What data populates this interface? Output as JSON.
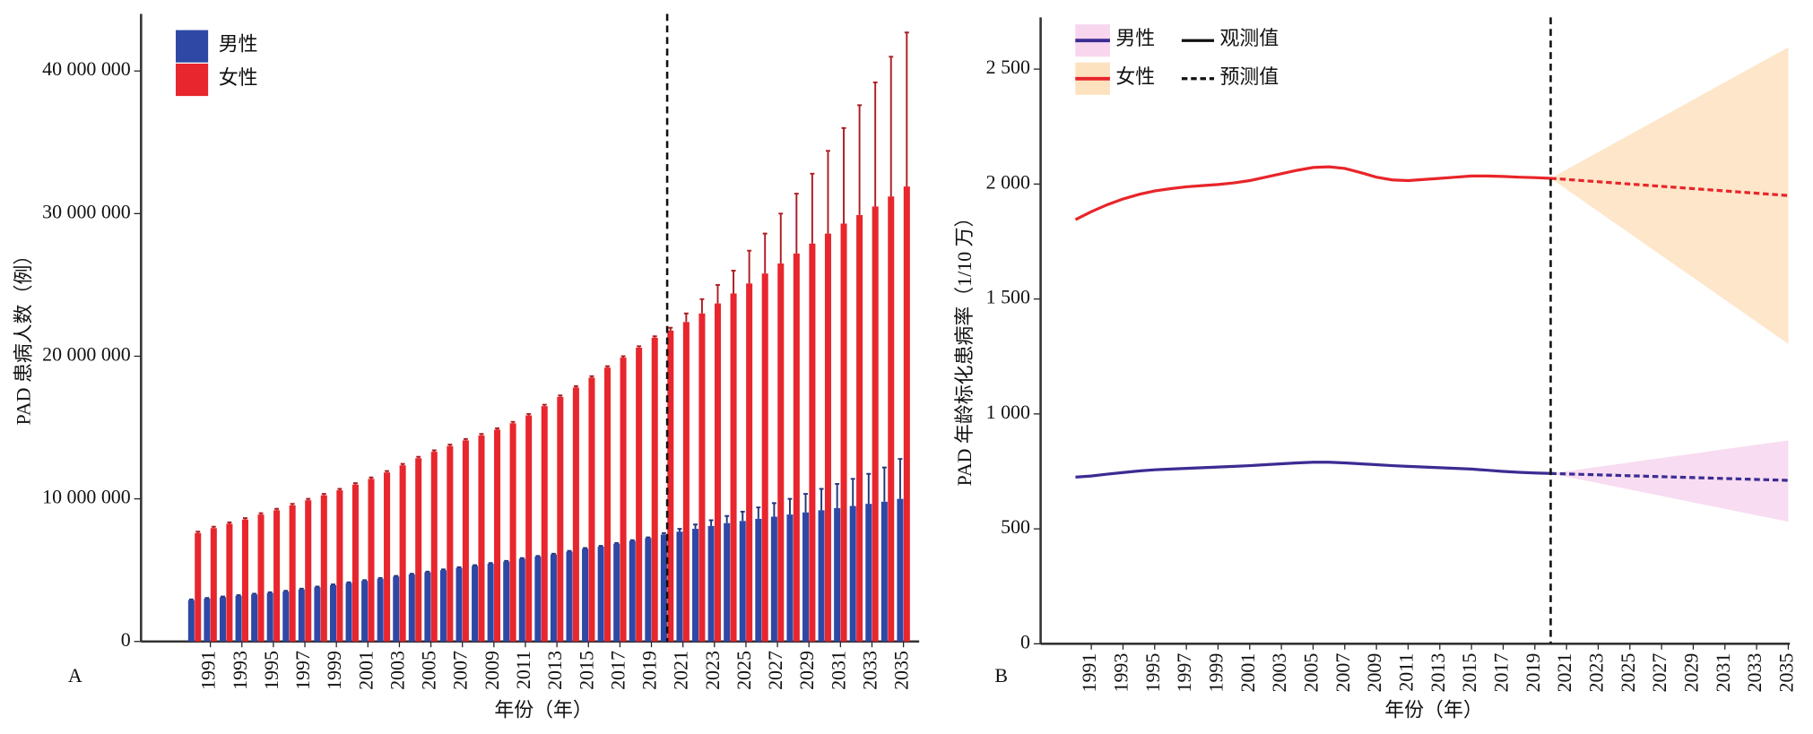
{
  "chart_data": [
    {
      "type": "bar",
      "panel": "A",
      "xlabel": "年份（年）",
      "ylabel": "PAD 患病人数（例）",
      "x": [
        1990,
        1991,
        1992,
        1993,
        1994,
        1995,
        1996,
        1997,
        1998,
        1999,
        2000,
        2001,
        2002,
        2003,
        2004,
        2005,
        2006,
        2007,
        2008,
        2009,
        2010,
        2011,
        2012,
        2013,
        2014,
        2015,
        2016,
        2017,
        2018,
        2019,
        2020,
        2021,
        2022,
        2023,
        2024,
        2025,
        2026,
        2027,
        2028,
        2029,
        2030,
        2031,
        2032,
        2033,
        2034,
        2035
      ],
      "xlim": [
        1986.6,
        2036
      ],
      "xticks": [
        1991,
        1993,
        1995,
        1997,
        1999,
        2001,
        2003,
        2005,
        2007,
        2009,
        2011,
        2013,
        2015,
        2017,
        2019,
        2021,
        2023,
        2025,
        2027,
        2029,
        2031,
        2033,
        2035
      ],
      "ylim": [
        0,
        44000000
      ],
      "yticks": [
        0,
        {
          "value": 10000000,
          "label": "10 000 000"
        },
        {
          "value": 20000000,
          "label": "20 000 000"
        },
        {
          "value": 30000000,
          "label": "30 000 000"
        },
        {
          "value": 40000000,
          "label": "40 000 000"
        }
      ],
      "vline": 2020,
      "legend": "upper-left",
      "series": [
        {
          "name": "男性",
          "color": "#2f48a6",
          "values": [
            2900000,
            3000000,
            3100000,
            3200000,
            3300000,
            3400000,
            3500000,
            3650000,
            3800000,
            3950000,
            4100000,
            4250000,
            4400000,
            4550000,
            4700000,
            4850000,
            5000000,
            5150000,
            5300000,
            5450000,
            5600000,
            5800000,
            5950000,
            6100000,
            6300000,
            6500000,
            6650000,
            6850000,
            7050000,
            7250000,
            7500000,
            7700000,
            7900000,
            8100000,
            8300000,
            8450000,
            8600000,
            8750000,
            8900000,
            9050000,
            9200000,
            9350000,
            9500000,
            9650000,
            9800000,
            10000000
          ],
          "errors": [
            50000,
            50000,
            50000,
            50000,
            50000,
            50000,
            50000,
            50000,
            50000,
            50000,
            50000,
            50000,
            50000,
            50000,
            50000,
            50000,
            50000,
            50000,
            50000,
            50000,
            50000,
            50000,
            50000,
            50000,
            50000,
            50000,
            50000,
            50000,
            50000,
            50000,
            100000,
            200000,
            300000,
            400000,
            500000,
            650000,
            800000,
            950000,
            1100000,
            1300000,
            1500000,
            1700000,
            1900000,
            2100000,
            2400000,
            2800000
          ]
        },
        {
          "name": "女性",
          "color": "#e8262d",
          "values": [
            7600000,
            7950000,
            8250000,
            8550000,
            8900000,
            9200000,
            9550000,
            9900000,
            10250000,
            10600000,
            11000000,
            11400000,
            11850000,
            12350000,
            12850000,
            13300000,
            13700000,
            14100000,
            14450000,
            14850000,
            15300000,
            15850000,
            16500000,
            17150000,
            17800000,
            18500000,
            19200000,
            19900000,
            20600000,
            21300000,
            21800000,
            22400000,
            23000000,
            23700000,
            24400000,
            25100000,
            25800000,
            26500000,
            27200000,
            27900000,
            28600000,
            29300000,
            29900000,
            30500000,
            31200000,
            31900000
          ],
          "errors": [
            100000,
            100000,
            100000,
            100000,
            100000,
            100000,
            100000,
            100000,
            100000,
            100000,
            100000,
            100000,
            100000,
            100000,
            100000,
            100000,
            100000,
            100000,
            100000,
            100000,
            100000,
            100000,
            100000,
            100000,
            100000,
            100000,
            100000,
            100000,
            100000,
            100000,
            200000,
            600000,
            1000000,
            1300000,
            1600000,
            2300000,
            2800000,
            3500000,
            4200000,
            4900000,
            5800000,
            6700000,
            7700000,
            8700000,
            9800000,
            10800000
          ]
        }
      ]
    },
    {
      "type": "line",
      "panel": "B",
      "xlabel": "年份（年）",
      "ylabel": "PAD 年龄标化患病率（1/10 万）",
      "x": [
        1990,
        1991,
        1992,
        1993,
        1994,
        1995,
        1996,
        1997,
        1998,
        1999,
        2000,
        2001,
        2002,
        2003,
        2004,
        2005,
        2006,
        2007,
        2008,
        2009,
        2010,
        2011,
        2012,
        2013,
        2014,
        2015,
        2016,
        2017,
        2018,
        2019,
        2020,
        2021,
        2022,
        2023,
        2024,
        2025,
        2026,
        2027,
        2028,
        2029,
        2030,
        2031,
        2032,
        2033,
        2034,
        2035
      ],
      "xlim": [
        1987.8,
        2035.1
      ],
      "xticks": [
        1991,
        1993,
        1995,
        1997,
        1999,
        2001,
        2003,
        2005,
        2007,
        2009,
        2011,
        2013,
        2015,
        2017,
        2019,
        2021,
        2023,
        2025,
        2027,
        2029,
        2031,
        2033,
        2035
      ],
      "ylim": [
        0,
        2725
      ],
      "yticks": [
        0,
        500,
        {
          "value": 1000,
          "label": "1 000"
        },
        {
          "value": 1500,
          "label": "1 500"
        },
        {
          "value": 2000,
          "label": "2 000"
        },
        {
          "value": 2500,
          "label": "2 500"
        }
      ],
      "vline": 2020,
      "legend": "upper-left",
      "line_styles": [
        {
          "name": "观测值",
          "dashed": false
        },
        {
          "name": "预测值",
          "dashed": true
        }
      ],
      "series": [
        {
          "name": "男性",
          "color": "#3b2c93",
          "band_color": "#f7d6ee",
          "values": [
            725,
            730,
            738,
            745,
            752,
            757,
            760,
            763,
            766,
            769,
            772,
            775,
            779,
            783,
            787,
            790,
            790,
            787,
            783,
            779,
            775,
            772,
            769,
            766,
            763,
            760,
            755,
            750,
            746,
            743,
            741,
            739,
            737,
            735,
            733,
            731,
            729,
            727,
            725,
            723,
            721,
            719,
            717,
            715,
            713,
            711
          ],
          "upper": [
            null,
            null,
            null,
            null,
            null,
            null,
            null,
            null,
            null,
            null,
            null,
            null,
            null,
            null,
            null,
            null,
            null,
            null,
            null,
            null,
            null,
            null,
            null,
            null,
            null,
            null,
            null,
            null,
            null,
            null,
            741,
            751,
            760,
            770,
            779,
            789,
            799,
            808,
            818,
            827,
            837,
            847,
            856,
            866,
            875,
            885
          ],
          "lower": [
            null,
            null,
            null,
            null,
            null,
            null,
            null,
            null,
            null,
            null,
            null,
            null,
            null,
            null,
            null,
            null,
            null,
            null,
            null,
            null,
            null,
            null,
            null,
            null,
            null,
            null,
            null,
            null,
            null,
            null,
            741,
            727,
            713,
            699,
            685,
            671,
            657,
            643,
            629,
            615,
            601,
            587,
            573,
            559,
            545,
            531
          ]
        },
        {
          "name": "女性",
          "color": "#e8252a",
          "band_color": "#fde2bf",
          "values": [
            1845,
            1880,
            1910,
            1935,
            1955,
            1970,
            1980,
            1988,
            1993,
            1998,
            2005,
            2015,
            2030,
            2045,
            2060,
            2072,
            2075,
            2068,
            2050,
            2030,
            2018,
            2015,
            2020,
            2025,
            2030,
            2035,
            2035,
            2033,
            2030,
            2028,
            2025,
            2020,
            2015,
            2010,
            2005,
            2000,
            1995,
            1990,
            1985,
            1980,
            1975,
            1970,
            1965,
            1960,
            1955,
            1950
          ],
          "upper": [
            null,
            null,
            null,
            null,
            null,
            null,
            null,
            null,
            null,
            null,
            null,
            null,
            null,
            null,
            null,
            null,
            null,
            null,
            null,
            null,
            null,
            null,
            null,
            null,
            null,
            null,
            null,
            null,
            null,
            null,
            2025,
            2063,
            2101,
            2139,
            2177,
            2215,
            2253,
            2291,
            2329,
            2367,
            2405,
            2443,
            2481,
            2519,
            2557,
            2595
          ],
          "lower": [
            null,
            null,
            null,
            null,
            null,
            null,
            null,
            null,
            null,
            null,
            null,
            null,
            null,
            null,
            null,
            null,
            null,
            null,
            null,
            null,
            null,
            null,
            null,
            null,
            null,
            null,
            null,
            null,
            null,
            null,
            2025,
            1977,
            1929,
            1881,
            1833,
            1785,
            1737,
            1689,
            1641,
            1593,
            1545,
            1497,
            1449,
            1401,
            1353,
            1305
          ]
        }
      ]
    }
  ]
}
